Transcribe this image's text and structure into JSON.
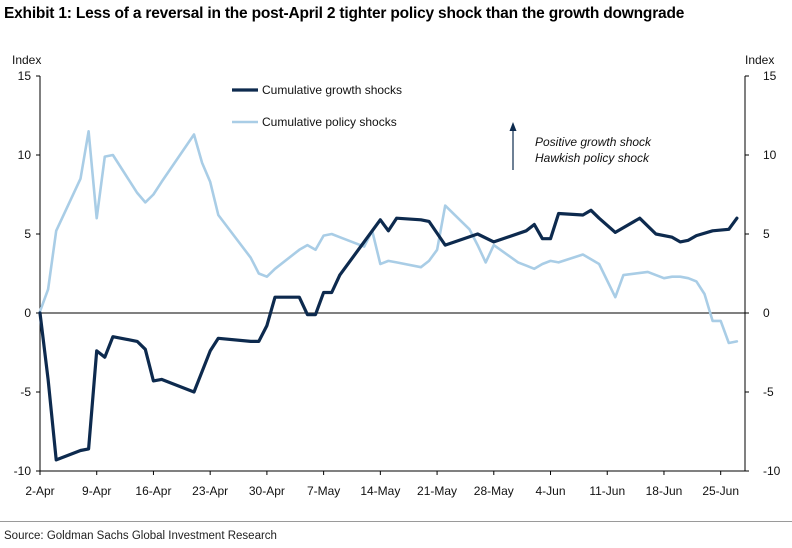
{
  "title": "Exhibit 1: Less of a reversal in the post-April 2 tighter policy shock than the growth downgrade",
  "source": "Source: Goldman Sachs Global Investment Research",
  "colors": {
    "growth": "#0d2a4e",
    "policy": "#a9cde6",
    "axis": "#000000"
  },
  "chart_data": {
    "type": "line",
    "title": "Exhibit 1: Less of a reversal in the post-April 2 tighter policy shock than the growth downgrade",
    "ylabel_left": "Index",
    "ylabel_right": "Index",
    "ylim": [
      -10,
      15
    ],
    "yticks": [
      -10,
      -5,
      0,
      5,
      10,
      15
    ],
    "xlim": [
      0,
      87
    ],
    "xticks": [
      {
        "pos": 0,
        "label": "2-Apr"
      },
      {
        "pos": 7,
        "label": "9-Apr"
      },
      {
        "pos": 14,
        "label": "16-Apr"
      },
      {
        "pos": 21,
        "label": "23-Apr"
      },
      {
        "pos": 28,
        "label": "30-Apr"
      },
      {
        "pos": 35,
        "label": "7-May"
      },
      {
        "pos": 42,
        "label": "14-May"
      },
      {
        "pos": 49,
        "label": "21-May"
      },
      {
        "pos": 56,
        "label": "28-May"
      },
      {
        "pos": 63,
        "label": "4-Jun"
      },
      {
        "pos": 70,
        "label": "11-Jun"
      },
      {
        "pos": 77,
        "label": "18-Jun"
      },
      {
        "pos": 84,
        "label": "25-Jun"
      }
    ],
    "legend": [
      "Cumulative growth shocks",
      "Cumulative policy shocks"
    ],
    "legend_position": "top-left",
    "annotation": [
      "Positive growth shock",
      "Hawkish policy shock"
    ],
    "series": [
      {
        "name": "Cumulative growth shocks",
        "x": [
          0,
          1,
          2,
          5,
          6,
          7,
          8,
          9,
          12,
          13,
          14,
          15,
          19,
          21,
          22,
          26,
          27,
          28,
          29,
          32,
          33,
          34,
          35,
          36,
          37,
          42,
          43,
          44,
          47,
          48,
          50,
          54,
          56,
          60,
          61,
          62,
          63,
          64,
          67,
          68,
          69,
          71,
          74,
          76,
          78,
          79,
          80,
          81,
          83,
          85,
          86
        ],
        "values": [
          0,
          -4.2,
          -9.3,
          -8.7,
          -8.6,
          -2.4,
          -2.8,
          -1.5,
          -1.8,
          -2.3,
          -4.3,
          -4.2,
          -5.0,
          -2.4,
          -1.6,
          -1.8,
          -1.8,
          -0.8,
          1.0,
          1.0,
          -0.1,
          -0.1,
          1.3,
          1.3,
          2.4,
          5.9,
          5.2,
          6.0,
          5.9,
          5.8,
          4.3,
          5.0,
          4.5,
          5.2,
          5.6,
          4.7,
          4.7,
          6.3,
          6.2,
          6.5,
          6.0,
          5.1,
          6.0,
          5.0,
          4.8,
          4.5,
          4.6,
          4.9,
          5.2,
          5.3,
          6.0
        ]
      },
      {
        "name": "Cumulative policy shocks",
        "x": [
          0,
          1,
          2,
          5,
          6,
          7,
          8,
          9,
          12,
          13,
          14,
          15,
          19,
          20,
          21,
          22,
          26,
          27,
          28,
          29,
          32,
          33,
          34,
          35,
          36,
          37,
          40,
          41,
          42,
          43,
          44,
          47,
          48,
          49,
          50,
          52,
          53,
          54,
          55,
          56,
          59,
          60,
          61,
          62,
          63,
          64,
          67,
          68,
          69,
          71,
          72,
          75,
          76,
          77,
          78,
          79,
          80,
          81,
          82,
          83,
          84,
          85,
          86
        ],
        "values": [
          0.1,
          1.5,
          5.2,
          8.5,
          11.5,
          6.0,
          9.9,
          10.0,
          7.6,
          7.0,
          7.5,
          8.3,
          11.3,
          9.5,
          8.3,
          6.2,
          3.5,
          2.5,
          2.3,
          2.8,
          4.0,
          4.3,
          4.0,
          4.9,
          5.0,
          4.8,
          4.2,
          5.2,
          3.1,
          3.3,
          3.2,
          2.9,
          3.3,
          4.0,
          6.8,
          5.8,
          5.3,
          4.3,
          3.2,
          4.3,
          3.2,
          3.0,
          2.8,
          3.1,
          3.3,
          3.2,
          3.7,
          3.4,
          3.1,
          1.0,
          2.4,
          2.6,
          2.4,
          2.2,
          2.3,
          2.3,
          2.2,
          2.0,
          1.2,
          -0.5,
          -0.5,
          -1.9,
          -1.8
        ]
      }
    ]
  }
}
